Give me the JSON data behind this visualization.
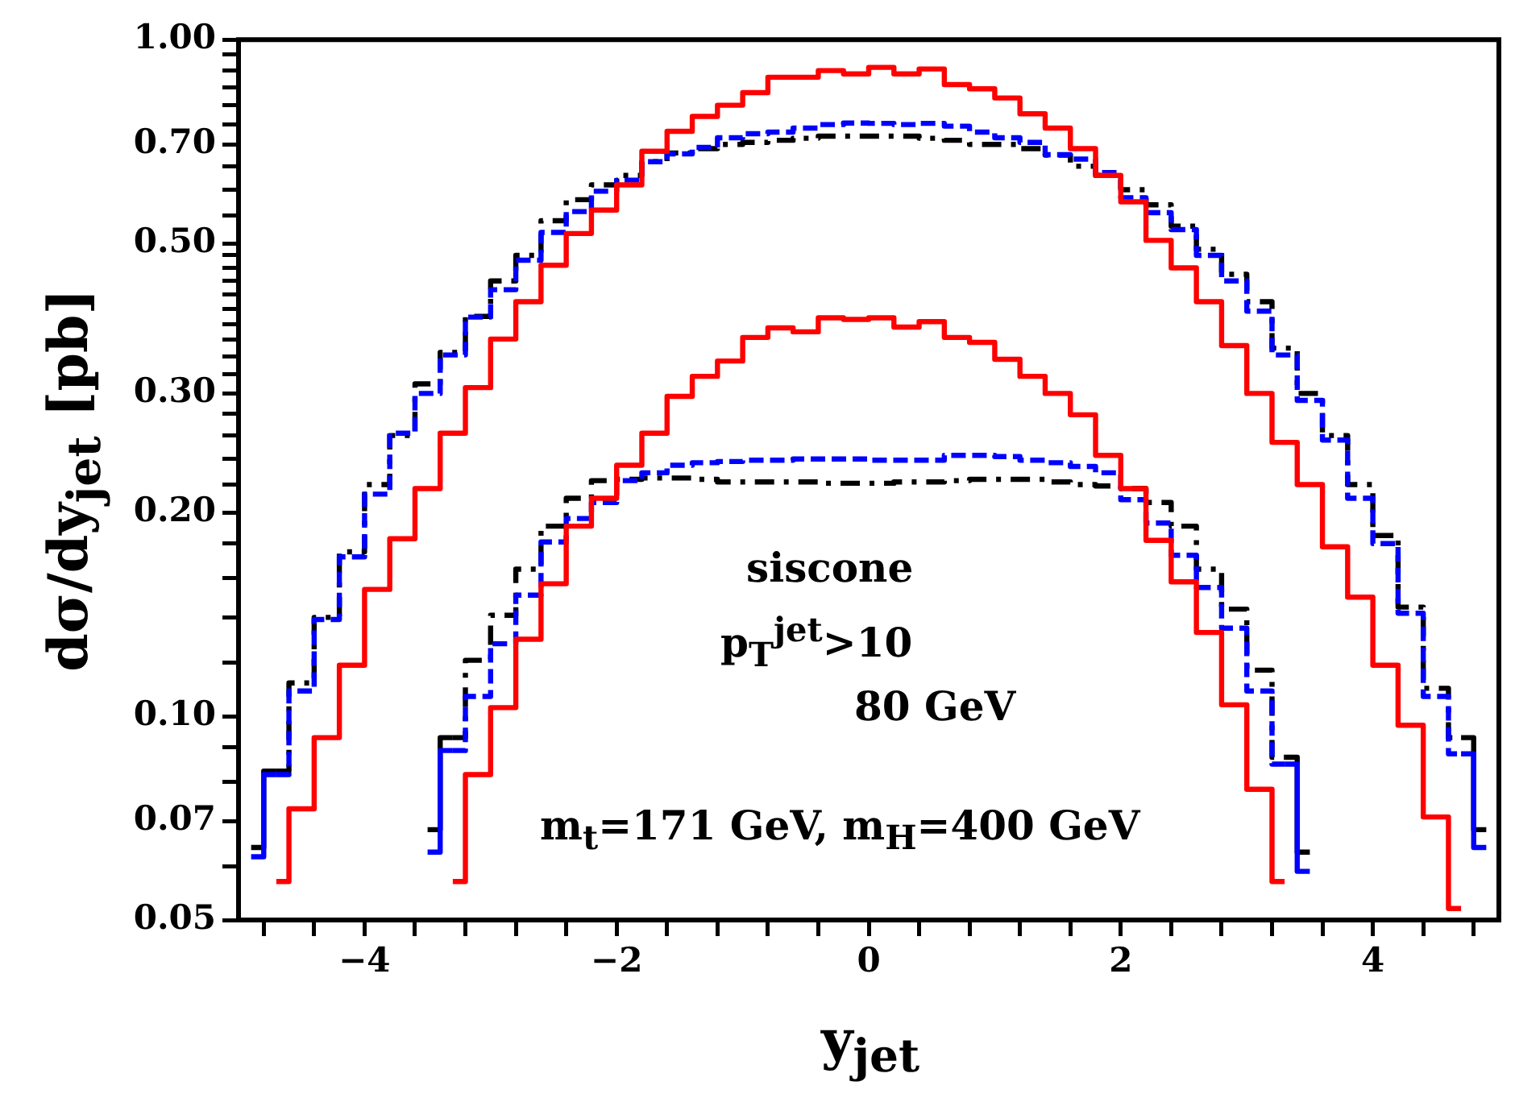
{
  "chart_data": {
    "type": "step",
    "xlabel": "y$_{jet}$",
    "ylabel": "dσ/dy$_{jet}$ [pb]",
    "log": "y",
    "annotations": [
      "siscone",
      "p$_{T}$$^{jet}$>10",
      "80 GeV",
      "m$_{t}$=171 GeV, m$_{H}$=400 GeV"
    ],
    "xlim": [
      -5,
      5
    ],
    "ylim": [
      0.05,
      1
    ],
    "xticks": [
      {
        "value": -4.8,
        "label": null
      },
      {
        "value": -4.4,
        "label": null
      },
      {
        "value": -4,
        "label": "−4"
      },
      {
        "value": -3.6,
        "label": null
      },
      {
        "value": -3.2,
        "label": null
      },
      {
        "value": -2.8,
        "label": null
      },
      {
        "value": -2.4,
        "label": null
      },
      {
        "value": -2,
        "label": "−2"
      },
      {
        "value": -1.6,
        "label": null
      },
      {
        "value": -1.2,
        "label": null
      },
      {
        "value": -0.8,
        "label": null
      },
      {
        "value": -0.4,
        "label": null
      },
      0,
      {
        "value": 0.4,
        "label": null
      },
      {
        "value": 0.8,
        "label": null
      },
      {
        "value": 1.2,
        "label": null
      },
      {
        "value": 1.6,
        "label": null
      },
      2,
      {
        "value": 2.4,
        "label": null
      },
      {
        "value": 2.8,
        "label": null
      },
      {
        "value": 3.2,
        "label": null
      },
      {
        "value": 3.6,
        "label": null
      },
      4,
      {
        "value": 4.4,
        "label": null
      },
      {
        "value": 4.8,
        "label": null
      }
    ],
    "yticks": [
      0.05,
      {
        "value": 0.06,
        "label": null
      },
      0.07,
      {
        "value": 0.08,
        "label": null
      },
      {
        "value": 0.09,
        "label": null
      },
      {
        "value": 0.1,
        "label": "0.10"
      },
      {
        "value": 0.12,
        "label": null
      },
      {
        "value": 0.14,
        "label": null
      },
      {
        "value": 0.16,
        "label": null
      },
      {
        "value": 0.18,
        "label": null
      },
      {
        "value": 0.2,
        "label": "0.20"
      },
      {
        "value": 0.22,
        "label": null
      },
      {
        "value": 0.24,
        "label": null
      },
      {
        "value": 0.26,
        "label": null
      },
      {
        "value": 0.28,
        "label": null
      },
      {
        "value": 0.3,
        "label": "0.30"
      },
      {
        "value": 0.32,
        "label": null
      },
      {
        "value": 0.34,
        "label": null
      },
      {
        "value": 0.36,
        "label": null
      },
      {
        "value": 0.38,
        "label": null
      },
      {
        "value": 0.4,
        "label": null
      },
      {
        "value": 0.42,
        "label": null
      },
      {
        "value": 0.44,
        "label": null
      },
      {
        "value": 0.46,
        "label": null
      },
      {
        "value": 0.48,
        "label": null
      },
      {
        "value": 0.5,
        "label": "0.50"
      },
      {
        "value": 0.55,
        "label": null
      },
      {
        "value": 0.6,
        "label": null
      },
      {
        "value": 0.65,
        "label": null
      },
      {
        "value": 0.7,
        "label": "0.70"
      },
      {
        "value": 0.75,
        "label": null
      },
      {
        "value": 0.8,
        "label": null
      },
      {
        "value": 0.85,
        "label": null
      },
      {
        "value": 0.9,
        "label": null
      },
      {
        "value": 0.95,
        "label": null
      },
      {
        "value": 1,
        "label": "1.00"
      }
    ],
    "x": [
      -4.9,
      -4.7,
      -4.5,
      -4.3,
      -4.1,
      -3.9,
      -3.7,
      -3.5,
      -3.3,
      -3.1,
      -2.9,
      -2.7,
      -2.5,
      -2.3,
      -2.1,
      -1.9,
      -1.7,
      -1.5,
      -1.3,
      -1.1,
      -0.9,
      -0.7,
      -0.5,
      -0.3,
      -0.1,
      0.1,
      0.3,
      0.5,
      0.7,
      0.9,
      1.1,
      1.3,
      1.5,
      1.7,
      1.9,
      2.1,
      2.3,
      2.5,
      2.7,
      2.9,
      3.1,
      3.3,
      3.5,
      3.7,
      3.9,
      4.1,
      4.3,
      4.5,
      4.7,
      4.9
    ],
    "series": [
      {
        "color": "#ff0000",
        "line_style": "solid",
        "values": [
          null,
          0.057,
          0.073,
          0.093,
          0.119,
          0.154,
          0.183,
          0.217,
          0.262,
          0.306,
          0.361,
          0.41,
          0.464,
          0.517,
          0.56,
          0.61,
          0.684,
          0.732,
          0.77,
          0.8,
          0.835,
          0.88,
          0.88,
          0.9,
          0.89,
          0.91,
          0.89,
          0.905,
          0.858,
          0.846,
          0.82,
          0.777,
          0.74,
          0.69,
          0.63,
          0.576,
          0.505,
          0.46,
          0.41,
          0.353,
          0.3,
          0.254,
          0.22,
          0.178,
          0.15,
          0.119,
          0.097,
          0.071,
          0.052,
          null
        ]
      },
      {
        "color": "#0000ff",
        "line_style": "dashed",
        "values": [
          0.062,
          0.082,
          0.109,
          0.139,
          0.172,
          0.213,
          0.262,
          0.3,
          0.342,
          0.389,
          0.427,
          0.472,
          0.519,
          0.557,
          0.597,
          0.62,
          0.66,
          0.678,
          0.693,
          0.716,
          0.726,
          0.73,
          0.74,
          0.749,
          0.753,
          0.752,
          0.749,
          0.752,
          0.745,
          0.73,
          0.716,
          0.705,
          0.676,
          0.666,
          0.636,
          0.584,
          0.555,
          0.524,
          0.48,
          0.44,
          0.397,
          0.342,
          0.293,
          0.256,
          0.21,
          0.18,
          0.142,
          0.107,
          0.088,
          0.064
        ]
      },
      {
        "color": "#000000",
        "line_style": "dashdot",
        "values": [
          0.064,
          0.083,
          0.112,
          0.14,
          0.175,
          0.22,
          0.26,
          0.31,
          0.345,
          0.39,
          0.44,
          0.48,
          0.54,
          0.58,
          0.61,
          0.63,
          0.66,
          0.68,
          0.69,
          0.7,
          0.705,
          0.71,
          0.715,
          0.72,
          0.72,
          0.72,
          0.72,
          0.715,
          0.71,
          0.7,
          0.7,
          0.69,
          0.675,
          0.65,
          0.63,
          0.6,
          0.57,
          0.53,
          0.49,
          0.45,
          0.41,
          0.35,
          0.3,
          0.26,
          0.22,
          0.185,
          0.145,
          0.11,
          0.093,
          0.068
        ]
      },
      {
        "color": "#ff0000",
        "line_style": "solid",
        "values": [
          null,
          null,
          null,
          null,
          null,
          null,
          null,
          null,
          0.057,
          0.082,
          0.103,
          0.13,
          0.157,
          0.191,
          0.21,
          0.235,
          0.262,
          0.297,
          0.318,
          0.335,
          0.363,
          0.375,
          0.37,
          0.388,
          0.386,
          0.388,
          0.376,
          0.383,
          0.363,
          0.357,
          0.337,
          0.318,
          0.3,
          0.279,
          0.243,
          0.217,
          0.182,
          0.158,
          0.133,
          0.104,
          0.078,
          0.057,
          null,
          null,
          null,
          null,
          null,
          null,
          null,
          null
        ]
      },
      {
        "color": "#0000ff",
        "line_style": "dashed",
        "values": [
          null,
          null,
          null,
          null,
          null,
          null,
          null,
          0.063,
          0.089,
          0.107,
          0.128,
          0.151,
          0.181,
          0.196,
          0.207,
          0.223,
          0.229,
          0.235,
          0.237,
          0.238,
          0.239,
          0.239,
          0.24,
          0.24,
          0.24,
          0.239,
          0.239,
          0.239,
          0.243,
          0.243,
          0.242,
          0.239,
          0.237,
          0.234,
          0.229,
          0.209,
          0.193,
          0.173,
          0.155,
          0.135,
          0.109,
          0.085,
          0.059,
          null,
          null,
          null,
          null,
          null,
          null,
          null
        ]
      },
      {
        "color": "#000000",
        "line_style": "dashdot",
        "values": [
          null,
          null,
          null,
          null,
          null,
          null,
          null,
          0.068,
          0.093,
          0.121,
          0.141,
          0.165,
          0.191,
          0.21,
          0.223,
          0.224,
          0.225,
          0.225,
          0.224,
          0.222,
          0.222,
          0.222,
          0.222,
          0.221,
          0.221,
          0.221,
          0.222,
          0.222,
          0.223,
          0.224,
          0.224,
          0.224,
          0.222,
          0.22,
          0.219,
          0.217,
          0.207,
          0.191,
          0.165,
          0.144,
          0.117,
          0.087,
          0.063,
          null,
          null,
          null,
          null,
          null,
          null,
          null
        ]
      }
    ]
  }
}
